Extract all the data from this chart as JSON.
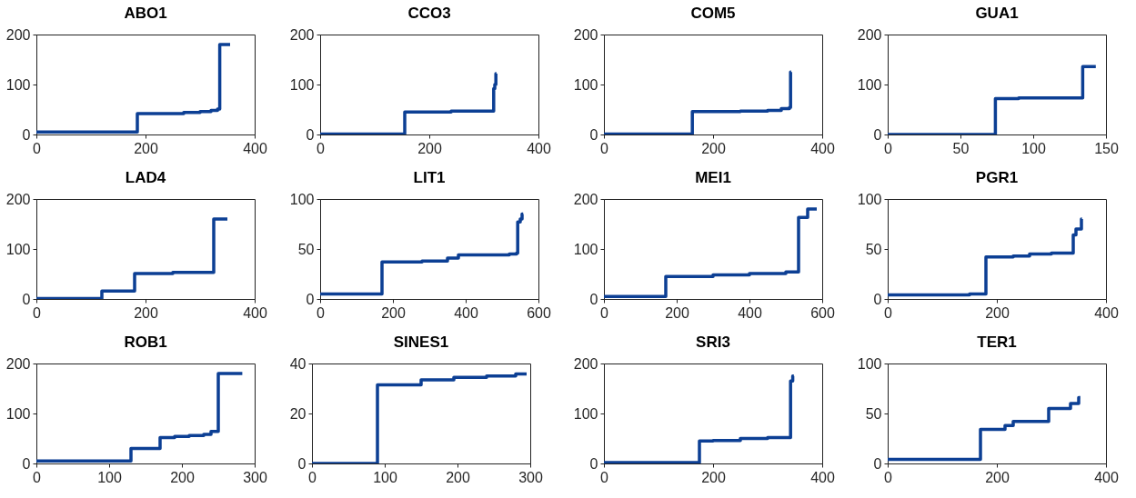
{
  "chart_data": [
    {
      "type": "step",
      "title": "ABO1",
      "x": [
        0,
        185,
        270,
        300,
        320,
        332,
        336,
        355
      ],
      "values": [
        5,
        42,
        44,
        46,
        48,
        51,
        180,
        180
      ],
      "color": "#0c3f94",
      "xlim": [
        0,
        400
      ],
      "ylim": [
        0,
        200
      ],
      "xticks": [
        0,
        200,
        400
      ],
      "yticks": [
        0,
        100,
        200
      ]
    },
    {
      "type": "step",
      "title": "CCO3",
      "x": [
        0,
        155,
        240,
        318,
        320,
        322,
        323
      ],
      "values": [
        1,
        45,
        47,
        92,
        100,
        122,
        122
      ],
      "color": "#0c3f94",
      "xlim": [
        0,
        400
      ],
      "ylim": [
        0,
        200
      ],
      "xticks": [
        0,
        200,
        400
      ],
      "yticks": [
        0,
        100,
        200
      ]
    },
    {
      "type": "step",
      "title": "COM5",
      "x": [
        0,
        162,
        250,
        300,
        325,
        340,
        342,
        343
      ],
      "values": [
        1,
        46,
        47,
        48,
        52,
        54,
        125,
        125
      ],
      "color": "#0c3f94",
      "xlim": [
        0,
        400
      ],
      "ylim": [
        0,
        200
      ],
      "xticks": [
        0,
        200,
        400
      ],
      "yticks": [
        0,
        100,
        200
      ]
    },
    {
      "type": "step",
      "title": "GUA1",
      "x": [
        0,
        74,
        90,
        134,
        143
      ],
      "values": [
        0,
        72,
        73,
        136,
        136
      ],
      "color": "#0c3f94",
      "xlim": [
        0,
        150
      ],
      "ylim": [
        0,
        200
      ],
      "xticks": [
        0,
        50,
        100,
        150
      ],
      "yticks": [
        0,
        100,
        200
      ]
    },
    {
      "type": "step",
      "title": "LAD4",
      "x": [
        0,
        120,
        180,
        250,
        325,
        350
      ],
      "values": [
        1,
        16,
        51,
        53,
        160,
        160
      ],
      "color": "#0c3f94",
      "xlim": [
        0,
        400
      ],
      "ylim": [
        0,
        200
      ],
      "xticks": [
        0,
        200,
        400
      ],
      "yticks": [
        0,
        100,
        200
      ]
    },
    {
      "type": "step",
      "title": "LIT1",
      "x": [
        0,
        170,
        280,
        350,
        380,
        520,
        540,
        543,
        550,
        555,
        558
      ],
      "values": [
        5,
        37,
        38,
        41,
        44,
        45,
        46,
        77,
        80,
        85,
        85
      ],
      "color": "#0c3f94",
      "xlim": [
        0,
        600
      ],
      "ylim": [
        0,
        100
      ],
      "xticks": [
        0,
        200,
        400,
        600
      ],
      "yticks": [
        0,
        50,
        100
      ]
    },
    {
      "type": "step",
      "title": "MEI1",
      "x": [
        0,
        170,
        300,
        400,
        500,
        535,
        560,
        585
      ],
      "values": [
        5,
        45,
        48,
        51,
        54,
        163,
        180,
        180
      ],
      "color": "#0c3f94",
      "xlim": [
        0,
        600
      ],
      "ylim": [
        0,
        200
      ],
      "xticks": [
        0,
        200,
        400,
        600
      ],
      "yticks": [
        0,
        100,
        200
      ]
    },
    {
      "type": "step",
      "title": "PGR1",
      "x": [
        0,
        150,
        180,
        230,
        260,
        300,
        340,
        345,
        355,
        356
      ],
      "values": [
        4,
        5,
        42,
        43,
        45,
        46,
        64,
        70,
        80,
        80
      ],
      "color": "#0c3f94",
      "xlim": [
        0,
        400
      ],
      "ylim": [
        0,
        100
      ],
      "xticks": [
        0,
        200,
        400
      ],
      "yticks": [
        0,
        50,
        100
      ]
    },
    {
      "type": "step",
      "title": "ROB1",
      "x": [
        0,
        130,
        170,
        190,
        210,
        230,
        240,
        250,
        283
      ],
      "values": [
        5,
        30,
        52,
        54,
        56,
        58,
        64,
        180,
        180
      ],
      "color": "#0c3f94",
      "xlim": [
        0,
        300
      ],
      "ylim": [
        0,
        200
      ],
      "xticks": [
        0,
        100,
        200,
        300
      ],
      "yticks": [
        0,
        100,
        200
      ]
    },
    {
      "type": "step",
      "title": "SINES1",
      "x": [
        0,
        90,
        150,
        195,
        240,
        280,
        295
      ],
      "values": [
        0,
        31.5,
        33.5,
        34.5,
        35,
        35.8,
        35.8
      ],
      "color": "#0c3f94",
      "xlim": [
        0,
        300
      ],
      "ylim": [
        0,
        40
      ],
      "xticks": [
        0,
        100,
        200,
        300
      ],
      "yticks": [
        0,
        20,
        40
      ]
    },
    {
      "type": "step",
      "title": "SRI3",
      "x": [
        0,
        175,
        200,
        250,
        300,
        342,
        346,
        348
      ],
      "values": [
        2,
        45,
        46,
        50,
        52,
        165,
        175,
        175
      ],
      "color": "#0c3f94",
      "xlim": [
        0,
        400
      ],
      "ylim": [
        0,
        200
      ],
      "xticks": [
        0,
        200,
        400
      ],
      "yticks": [
        0,
        100,
        200
      ]
    },
    {
      "type": "step",
      "title": "TER1",
      "x": [
        0,
        170,
        215,
        230,
        295,
        335,
        350,
        353
      ],
      "values": [
        4,
        34,
        38,
        42,
        55,
        60,
        66,
        66
      ],
      "color": "#0c3f94",
      "xlim": [
        0,
        400
      ],
      "ylim": [
        0,
        100
      ],
      "xticks": [
        0,
        200,
        400
      ],
      "yticks": [
        0,
        50,
        100
      ]
    }
  ]
}
